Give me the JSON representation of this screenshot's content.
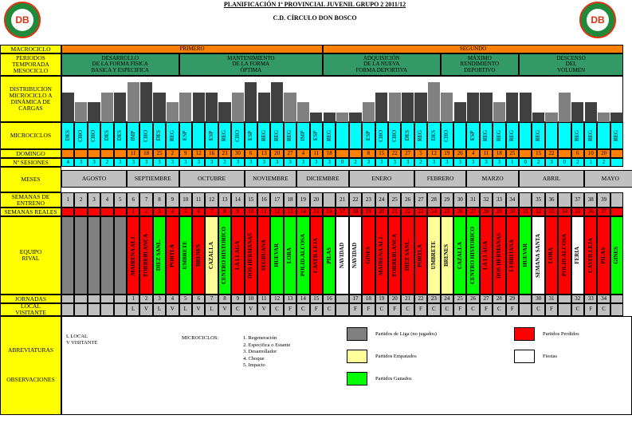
{
  "header": {
    "title": "PLANIFICACIÓN 1ª PROVINCIAL JUVENIL GRUPO 2    2011/12",
    "club": "C.D. CÍRCULO DON BOSCO",
    "logo_text": "DB"
  },
  "labels": {
    "macrociclo": "MACROCICLO",
    "periodos": "PERIODOS\nTEMPORADA\nMESOCICLO",
    "distribucion": "DISTRIBUCION\nMICROCICLO A\nDINÁMICA DE\nCARGAS",
    "microciclos": "MICROCICLOS",
    "domingo": "DOMINGO",
    "sesiones": "Nº SESIONES",
    "meses": "MESES",
    "semanas_entreno": "SEMANAS DE\nENTRENO",
    "semanas_reales": "SEMANAS REALES",
    "equipo": "EQUIPO\nRIVAL",
    "jornadas": "JORNADAS",
    "local": "LOCAL\nVISITANTE",
    "abreviaturas": "ABREVIATURAS",
    "observaciones": "OBSERVACIONES"
  },
  "macro": [
    "PRIMERO",
    "SEGUNDO"
  ],
  "mesociclos": [
    "DESARROLLO\nDE LA FORMA FISICA\nBASICA Y ESPECIFICA",
    "MANTENIMIENTO\nDE LA FORMA\nÓPTIMA",
    "ADQUISICIÓN\nDE LA NUEVA\nFORMA DEPORTIVA",
    "MÁXIMO\nRENDIMIENTO\nDEPORTIVO",
    "DESCENSO\nDEL\nVOLUMEN"
  ],
  "loads": [
    3,
    2,
    2,
    3,
    3,
    4,
    4,
    3,
    2,
    3,
    3,
    3,
    2,
    3,
    4,
    3,
    4,
    3,
    2,
    1,
    1,
    1,
    1,
    2,
    3,
    3,
    3,
    3,
    4,
    3,
    2,
    3,
    3,
    2,
    3,
    3,
    1,
    1,
    3,
    2,
    2,
    1,
    1
  ],
  "micro": [
    "DES",
    "CHO",
    "CHO",
    "DES",
    "DES",
    "IMP",
    "CHO",
    "DES",
    "REG",
    "ESP",
    "",
    "ESP",
    "REG",
    "CHO",
    "ESP",
    "REG",
    "REG",
    "REG",
    "IMP",
    "ESP",
    "REG",
    "",
    "",
    "ESP",
    "CHO",
    "CHO",
    "DES",
    "REG",
    "DES",
    "CHO",
    "",
    "ESP",
    "REG",
    "REG",
    "REG",
    "",
    "REG",
    "",
    "",
    "REG",
    "REG",
    "",
    "REG"
  ],
  "domingo": [
    "",
    "",
    "",
    "",
    "",
    "11",
    "18",
    "25",
    "2",
    "9",
    "12",
    "16",
    "23",
    "30",
    "6",
    "13",
    "20",
    "27",
    "4",
    "11",
    "18",
    "",
    "",
    "8",
    "15",
    "22",
    "27",
    "5",
    "12",
    "19",
    "26",
    "4",
    "11",
    "18",
    "25",
    "",
    "15",
    "22",
    "",
    "6",
    "10",
    "20",
    ""
  ],
  "sesiones": [
    "4",
    "3",
    "3",
    "2",
    "3",
    "3",
    "3",
    "3",
    "3",
    "3",
    "3",
    "3",
    "2",
    "3",
    "3",
    "3",
    "3",
    "3",
    "3",
    "3",
    "3",
    "0",
    "2",
    "3",
    "3",
    "3",
    "3",
    "2",
    "3",
    "3",
    "3",
    "3",
    "3",
    "3",
    "1",
    "0",
    "2",
    "3",
    "0",
    "2",
    "1",
    "2",
    ""
  ],
  "meses": [
    [
      "AGOSTO",
      5
    ],
    [
      "SEPTIEMBRE",
      4
    ],
    [
      "OCTUBRE",
      5
    ],
    [
      "NOVIEMBRE",
      4
    ],
    [
      "DICIEMBRE",
      4
    ],
    [
      "ENERO",
      5
    ],
    [
      "FEBRERO",
      4
    ],
    [
      "MARZO",
      4
    ],
    [
      "ABRIL",
      5
    ],
    [
      "MAYO",
      4
    ],
    [
      "JUN",
      1
    ]
  ],
  "semanas_entreno": [
    "1",
    "2",
    "3",
    "4",
    "5",
    "6",
    "7",
    "8",
    "9",
    "10",
    "11",
    "12",
    "13",
    "14",
    "15",
    "16",
    "17",
    "18",
    "19",
    "20",
    "",
    "21",
    "22",
    "23",
    "24",
    "25",
    "26",
    "27",
    "28",
    "29",
    "30",
    "31",
    "32",
    "33",
    "34",
    "",
    "35",
    "36",
    "",
    "37",
    "38",
    "39",
    ""
  ],
  "semanas_reales": [
    "",
    "",
    "",
    "",
    "",
    "1",
    "2",
    "3",
    "4",
    "5",
    "6",
    "7",
    "8",
    "9",
    "10",
    "11",
    "12",
    "13",
    "14",
    "15",
    "16",
    "17",
    "18",
    "19",
    "20",
    "21",
    "22",
    "23",
    "24",
    "25",
    "26",
    "27",
    "28",
    "29",
    "30",
    "31",
    "32",
    "33",
    "34",
    "35",
    "36",
    "37",
    ""
  ],
  "equipo": [
    [
      "",
      "g"
    ],
    [
      "",
      "g"
    ],
    [
      "",
      "g"
    ],
    [
      "",
      "g"
    ],
    [
      "",
      "g"
    ],
    [
      "MAIRENA ALJ.",
      "r"
    ],
    [
      "TORREBLANCA",
      "r"
    ],
    [
      "DIEZ SANL.",
      "g"
    ],
    [
      "PORTLA",
      "r"
    ],
    [
      "UMBRETE",
      "g"
    ],
    [
      "BRENES",
      "r"
    ],
    [
      "CAZALLA",
      "y"
    ],
    [
      "CENTRO HISTORICO",
      "g"
    ],
    [
      "LA LLAGA",
      "r"
    ],
    [
      "DOS HERMANAS",
      "r"
    ],
    [
      "SEGRUANA",
      "r"
    ],
    [
      "HUEVAR",
      "g"
    ],
    [
      "LORA",
      "g"
    ],
    [
      "POLID.ALCOSA",
      "g"
    ],
    [
      "CASTILLEJA",
      "r"
    ],
    [
      "PILAS",
      "g"
    ],
    [
      "NAVIDAD",
      "w"
    ],
    [
      "NAVIDAD",
      "w"
    ],
    [
      "GINES",
      "r"
    ],
    [
      "MAIRENA ALJ.",
      "r"
    ],
    [
      "TORREBLANCA",
      "r"
    ],
    [
      "DIEZ SANL.",
      "r"
    ],
    [
      "PORTLA",
      "r"
    ],
    [
      "UMBRETE",
      "y"
    ],
    [
      "BRENES",
      "y"
    ],
    [
      "CAZALLA",
      "g"
    ],
    [
      "CENTRO HISTORICO",
      "g"
    ],
    [
      "LA LLAGA",
      "r"
    ],
    [
      "DOS HERMANAS",
      "r"
    ],
    [
      "LEBRIJANA",
      "r"
    ],
    [
      "HUEVAR",
      "g"
    ],
    [
      "SEMANA SANTA",
      "w"
    ],
    [
      "LORA",
      "r"
    ],
    [
      "POLID.ALCOSA",
      "r"
    ],
    [
      "FERIA",
      "w"
    ],
    [
      "CASTILLEJA",
      "r"
    ],
    [
      "PILAS",
      "r"
    ],
    [
      "GINES",
      "g"
    ]
  ],
  "jornadas": [
    "",
    "",
    "",
    "",
    "",
    "1",
    "2",
    "3",
    "4",
    "5",
    "6",
    "7",
    "8",
    "9",
    "10",
    "11",
    "12",
    "13",
    "14",
    "15",
    "16",
    "",
    "17",
    "18",
    "19",
    "20",
    "21",
    "22",
    "23",
    "24",
    "25",
    "26",
    "27",
    "28",
    "29",
    "",
    "30",
    "31",
    "",
    "32",
    "33",
    "34",
    ""
  ],
  "local": [
    "",
    "",
    "",
    "",
    "",
    "L",
    "V",
    "L",
    "V",
    "L",
    "V",
    "L",
    "V",
    "C",
    "V",
    "V",
    "C",
    "F",
    "C",
    "F",
    "C",
    "",
    "F",
    "F",
    "C",
    "F",
    "C",
    "F",
    "C",
    "C",
    "F",
    "C",
    "F",
    "C",
    "F",
    "",
    "C",
    "F",
    "",
    "C",
    "F",
    "C",
    ""
  ],
  "abbr": {
    "l": "L   LOCAL",
    "v": "V  VISITANTE"
  },
  "micro_title": "MICROCICLOS:",
  "micro_list": [
    "1. Regeneración",
    "2. Especifica o Estante",
    "3. Desarrollador",
    "4. Choque",
    "5. Impacto"
  ],
  "legend": {
    "gray": "Partidos de Liga (no jugados)",
    "red": "Partidos Perdidos",
    "yellow": "Partidos Empatados",
    "white": "Fiestas",
    "green": "Partidos Ganados"
  },
  "colors": {
    "yellow": "#ffff00",
    "green": "#00ff00",
    "teal": "#339966",
    "orange": "#ff8000",
    "cyan": "#00ffff",
    "red": "#ff0000",
    "lightyellow": "#ffff99",
    "gray": "#808080",
    "lightgray": "#c0c0c0"
  }
}
